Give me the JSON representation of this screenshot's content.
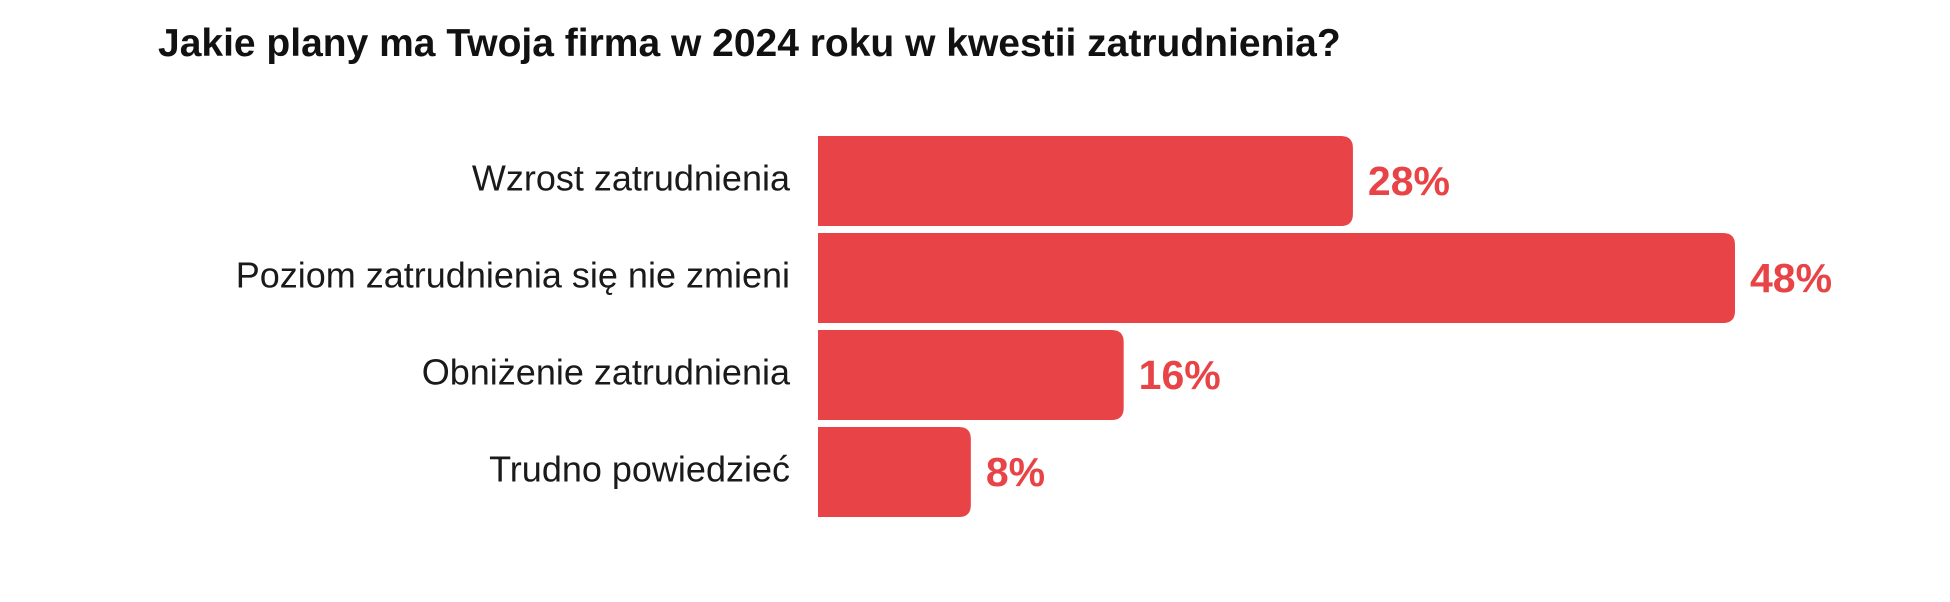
{
  "colors": {
    "bar": "#e84346",
    "value_label": "#e84346",
    "title": "#111111",
    "category_label": "#1a1a1a",
    "background": "#ffffff"
  },
  "chart_data": {
    "type": "bar",
    "orientation": "horizontal",
    "title": "Jakie plany ma Twoja firma w 2024 roku w kwestii zatrudnienia?",
    "categories": [
      "Wzrost zatrudnienia",
      "Poziom zatrudnienia się nie zmieni",
      "Obniżenie zatrudnienia",
      "Trudno powiedzieć"
    ],
    "values": [
      28,
      48,
      16,
      8
    ],
    "value_labels": [
      "28%",
      "48%",
      "16%",
      "8%"
    ],
    "unit": "%",
    "xlim": [
      0,
      48
    ],
    "grid": false,
    "legend": "none",
    "xlabel": "",
    "ylabel": ""
  }
}
